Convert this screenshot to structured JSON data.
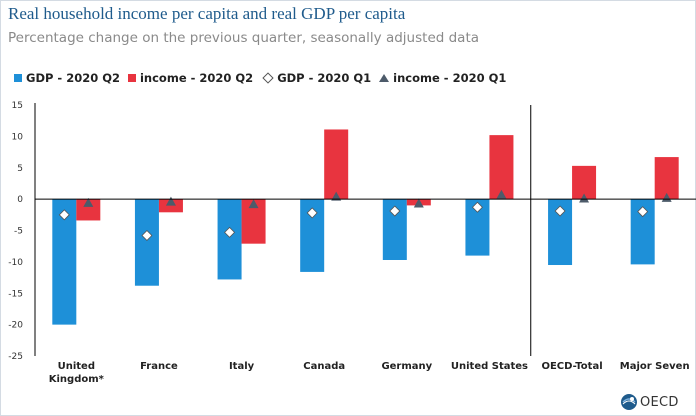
{
  "title": "Real household income per capita and real GDP per capita",
  "subtitle": "Percentage change on the previous quarter, seasonally adjusted data",
  "logo_text": "OECD",
  "colors": {
    "gdp_q2": "#1e90d8",
    "income_q2": "#e8343f",
    "marker_diamond": "#ffffff",
    "marker_triangle": "#4d5b6a",
    "axis": "#000000",
    "title": "#1f5b8c"
  },
  "chart_data": {
    "type": "bar",
    "categories": [
      [
        "United",
        "Kingdom*"
      ],
      [
        "France"
      ],
      [
        "Italy"
      ],
      [
        "Canada"
      ],
      [
        "Germany"
      ],
      [
        "United States"
      ],
      [
        "OECD-Total"
      ],
      [
        "Major Seven"
      ]
    ],
    "series": [
      {
        "name": "GDP - 2020 Q2",
        "kind": "bar",
        "values": [
          -20.0,
          -13.8,
          -12.8,
          -11.6,
          -9.7,
          -9.0,
          -10.5,
          -10.4
        ]
      },
      {
        "name": "income - 2020 Q2",
        "kind": "bar",
        "values": [
          -3.4,
          -2.1,
          -7.1,
          11.1,
          -1.0,
          10.2,
          5.3,
          6.7
        ]
      },
      {
        "name": "GDP - 2020 Q1",
        "kind": "diamond",
        "values": [
          -2.5,
          -5.8,
          -5.3,
          -2.2,
          -1.9,
          -1.3,
          -1.9,
          -2.0
        ]
      },
      {
        "name": "income - 2020 Q1",
        "kind": "triangle",
        "values": [
          -0.6,
          -0.4,
          -0.8,
          0.4,
          -0.7,
          0.7,
          0.1,
          0.2
        ]
      }
    ],
    "yticks": [
      15,
      10,
      5,
      0,
      -5,
      -10,
      -15,
      -20,
      -25
    ],
    "ylim": [
      -25,
      15
    ],
    "separator_after_index": 5,
    "grid": false,
    "legend_position": "top-left"
  }
}
